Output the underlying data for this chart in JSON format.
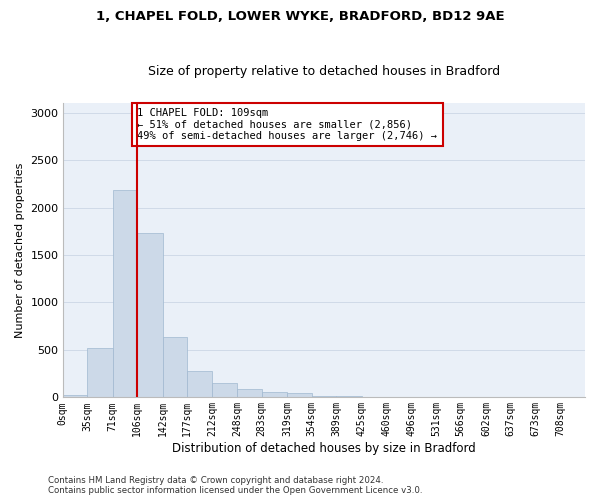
{
  "title1": "1, CHAPEL FOLD, LOWER WYKE, BRADFORD, BD12 9AE",
  "title2": "Size of property relative to detached houses in Bradford",
  "xlabel": "Distribution of detached houses by size in Bradford",
  "ylabel": "Number of detached properties",
  "bin_labels": [
    "0sqm",
    "35sqm",
    "71sqm",
    "106sqm",
    "142sqm",
    "177sqm",
    "212sqm",
    "248sqm",
    "283sqm",
    "319sqm",
    "354sqm",
    "389sqm",
    "425sqm",
    "460sqm",
    "496sqm",
    "531sqm",
    "566sqm",
    "602sqm",
    "637sqm",
    "673sqm",
    "708sqm"
  ],
  "bar_values": [
    25,
    520,
    2190,
    1730,
    630,
    275,
    145,
    80,
    55,
    40,
    15,
    10,
    5,
    5,
    2,
    2,
    1,
    1,
    1,
    1,
    0
  ],
  "bar_color": "#ccd9e8",
  "bar_edge_color": "#a0b8d0",
  "grid_color": "#d0dae8",
  "background_color": "#eaf0f8",
  "vline_x_index": 3,
  "annotation_text": "1 CHAPEL FOLD: 109sqm\n← 51% of detached houses are smaller (2,856)\n49% of semi-detached houses are larger (2,746) →",
  "annotation_box_color": "#ffffff",
  "annotation_box_edge_color": "#cc0000",
  "vline_color": "#cc0000",
  "ylim": [
    0,
    3100
  ],
  "yticks": [
    0,
    500,
    1000,
    1500,
    2000,
    2500,
    3000
  ],
  "footer1": "Contains HM Land Registry data © Crown copyright and database right 2024.",
  "footer2": "Contains public sector information licensed under the Open Government Licence v3.0."
}
